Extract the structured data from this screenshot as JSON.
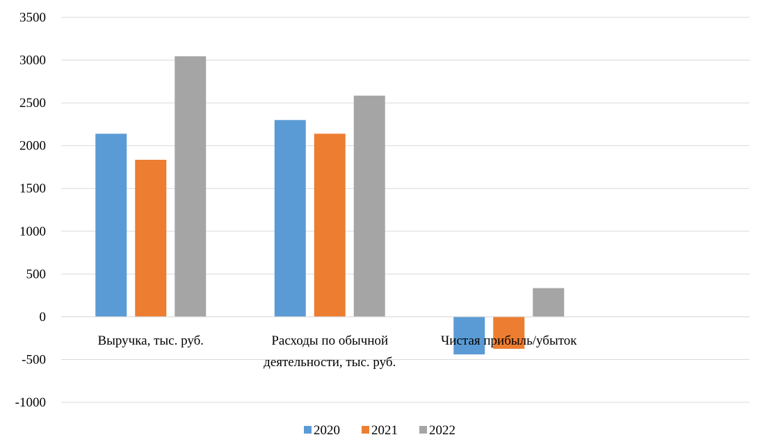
{
  "chart_data": {
    "type": "bar",
    "categories": [
      [
        "Выручка, тыс. руб."
      ],
      [
        "Расходы по обычной",
        "деятельности, тыс. руб."
      ],
      [
        "Чистая прибыль/убыток"
      ]
    ],
    "series": [
      {
        "name": "2020",
        "color": "#5b9bd5",
        "values": [
          2140,
          2300,
          -440
        ]
      },
      {
        "name": "2021",
        "color": "#ed7d31",
        "values": [
          1835,
          2140,
          -375
        ]
      },
      {
        "name": "2022",
        "color": "#a5a5a5",
        "values": [
          3045,
          2585,
          335
        ]
      }
    ],
    "y_ticks": [
      3500,
      3000,
      2500,
      2000,
      1500,
      1000,
      500,
      0,
      -500,
      -1000
    ],
    "ylim": [
      -1000,
      3500
    ],
    "grid": true,
    "legend_position": "bottom-center"
  }
}
